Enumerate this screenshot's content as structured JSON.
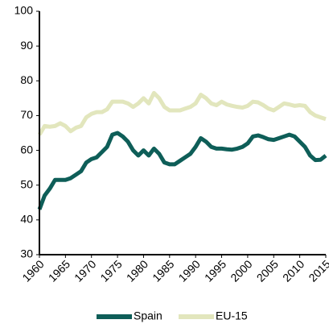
{
  "chart_data": {
    "type": "line",
    "x": [
      1960,
      1961,
      1962,
      1963,
      1964,
      1965,
      1966,
      1967,
      1968,
      1969,
      1970,
      1971,
      1972,
      1973,
      1974,
      1975,
      1976,
      1977,
      1978,
      1979,
      1980,
      1981,
      1982,
      1983,
      1984,
      1985,
      1986,
      1987,
      1988,
      1989,
      1990,
      1991,
      1992,
      1993,
      1994,
      1995,
      1996,
      1997,
      1998,
      1999,
      2000,
      2001,
      2002,
      2003,
      2004,
      2005,
      2006,
      2007,
      2008,
      2009,
      2010,
      2011,
      2012,
      2013,
      2014,
      2015
    ],
    "series": [
      {
        "name": "Spain",
        "color": "#0e5e58",
        "values": [
          43,
          47,
          49,
          51.5,
          51.5,
          51.5,
          52,
          53,
          54,
          56.5,
          57.5,
          58,
          59.5,
          61,
          64.5,
          65,
          64,
          62.5,
          60,
          58.5,
          60,
          58.5,
          60.5,
          59,
          56.5,
          56,
          56,
          57,
          58,
          59,
          61,
          63.5,
          62.5,
          61,
          60.5,
          60.5,
          60.3,
          60.2,
          60.5,
          61,
          62,
          64,
          64.3,
          63.8,
          63.2,
          63,
          63.5,
          64,
          64.5,
          64,
          62.5,
          61,
          58.5,
          57.2,
          57.3,
          58.5
        ]
      },
      {
        "name": "EU-15",
        "color": "#e2e6bd",
        "values": [
          64.5,
          67,
          66.8,
          67,
          67.8,
          67,
          65.5,
          66.5,
          67,
          69.5,
          70.5,
          71,
          71,
          71.8,
          74,
          74,
          74,
          73.5,
          72.5,
          73.5,
          75,
          73.5,
          76.5,
          75,
          72.5,
          71.5,
          71.5,
          71.5,
          72,
          72.5,
          73.5,
          76,
          75,
          73.5,
          73,
          74,
          73.2,
          72.8,
          72.5,
          72.3,
          72.8,
          74,
          73.8,
          73,
          72,
          71.5,
          72.5,
          73.5,
          73.2,
          72.8,
          73,
          72.8,
          71,
          70,
          69.5,
          69
        ]
      }
    ],
    "xlim": [
      1960,
      2015
    ],
    "xticks": [
      1960,
      1965,
      1970,
      1975,
      1980,
      1985,
      1990,
      1995,
      2000,
      2005,
      2010,
      2015
    ],
    "ylim": [
      30,
      100
    ],
    "yticks": [
      30,
      40,
      50,
      60,
      70,
      80,
      90,
      100
    ],
    "grid": false,
    "legend": "bottom"
  }
}
